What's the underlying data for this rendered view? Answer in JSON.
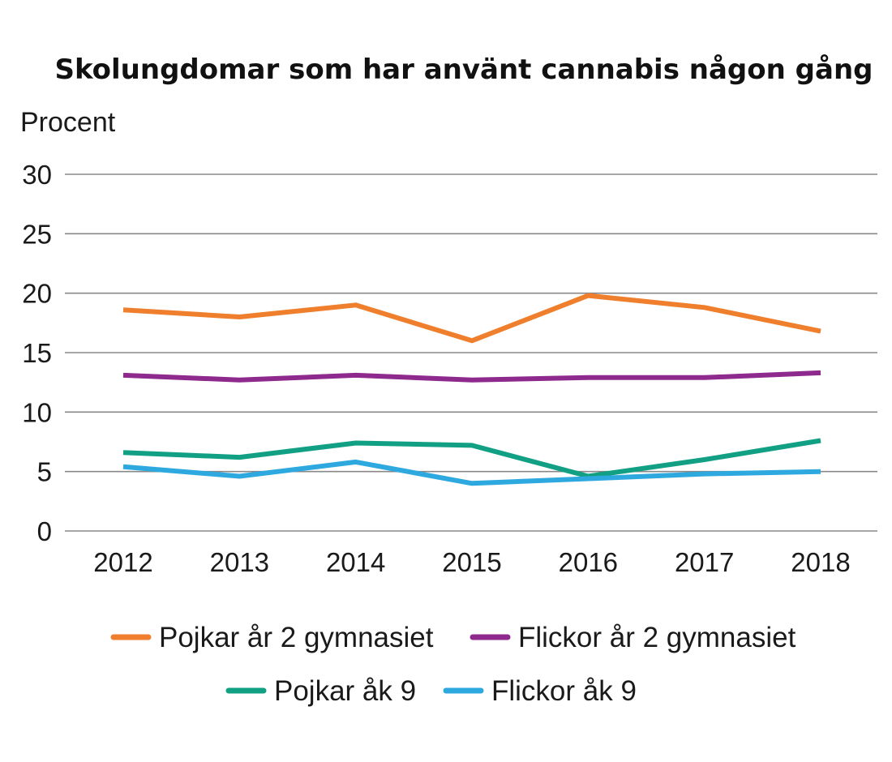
{
  "chart_data": {
    "type": "line",
    "title": "Skolungdomar som har använt cannabis någon gång",
    "ylabel": "Procent",
    "xlabel": "",
    "categories": [
      "2012",
      "2013",
      "2014",
      "2015",
      "2016",
      "2017",
      "2018"
    ],
    "ylim": [
      0,
      30
    ],
    "yticks": [
      0,
      5,
      10,
      15,
      20,
      25,
      30
    ],
    "grid": true,
    "legend_position": "bottom",
    "series": [
      {
        "name": "Pojkar år 2 gymnasiet",
        "color": "#f07f2d",
        "values": [
          18.6,
          18.0,
          19.0,
          16.0,
          19.8,
          18.8,
          16.8
        ]
      },
      {
        "name": "Flickor år 2 gymnasiet",
        "color": "#8e2a8d",
        "values": [
          13.1,
          12.7,
          13.1,
          12.7,
          12.9,
          12.9,
          13.3
        ]
      },
      {
        "name": "Pojkar åk 9",
        "color": "#12a085",
        "values": [
          6.6,
          6.2,
          7.4,
          7.2,
          4.6,
          6.0,
          7.6
        ]
      },
      {
        "name": "Flickor åk 9",
        "color": "#2ea9df",
        "values": [
          5.4,
          4.6,
          5.8,
          4.0,
          4.4,
          4.8,
          5.0
        ]
      }
    ]
  }
}
